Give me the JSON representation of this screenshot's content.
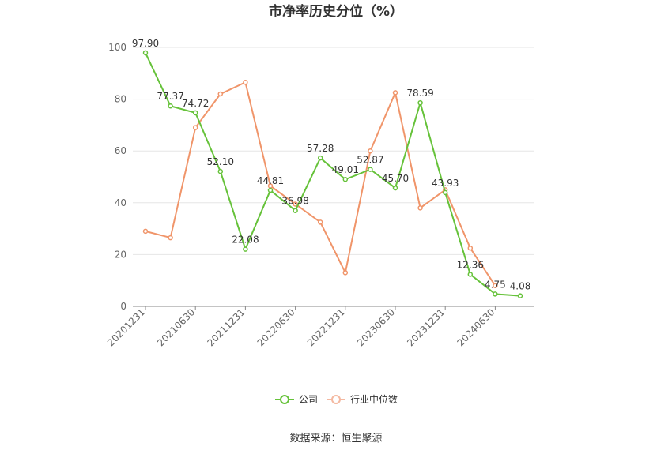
{
  "chart_data": {
    "type": "line",
    "title": "市净率历史分位（%）",
    "xlabel": "",
    "ylabel": "",
    "ylim": [
      0,
      100
    ],
    "yticks": [
      0,
      20,
      40,
      60,
      80,
      100
    ],
    "x": [
      "20201231",
      "20210331",
      "20210630",
      "20210930",
      "20211231",
      "20220331",
      "20220630",
      "20220930",
      "20221231",
      "20230331",
      "20230630",
      "20230930",
      "20231231",
      "20240331",
      "20240630",
      "20240930"
    ],
    "xtick_labels": [
      "20201231",
      "20210630",
      "20211231",
      "20220630",
      "20221231",
      "20230630",
      "20231231",
      "20240630"
    ],
    "series": [
      {
        "name": "公司",
        "color": "#66c23a",
        "values": [
          97.9,
          77.37,
          74.72,
          52.1,
          22.08,
          44.81,
          36.98,
          57.28,
          49.01,
          52.87,
          45.7,
          78.59,
          43.93,
          12.36,
          4.75,
          4.08
        ]
      },
      {
        "name": "行业中位数",
        "color": "#f0956a",
        "values": [
          29.0,
          26.5,
          69.0,
          82.0,
          86.5,
          46.5,
          39.5,
          32.5,
          13.0,
          60.0,
          82.5,
          38.0,
          45.0,
          22.5,
          8.0,
          null
        ]
      }
    ],
    "data_labels": [
      "97.90",
      "77.37",
      "74.72",
      "52.10",
      "22.08",
      "44.81",
      "36.98",
      "57.28",
      "49.01",
      "52.87",
      "45.70",
      "78.59",
      "43.93",
      "12.36",
      "4.75",
      "4.08"
    ],
    "grid": true,
    "legend": "bottom"
  },
  "source": "数据来源：恒生聚源"
}
